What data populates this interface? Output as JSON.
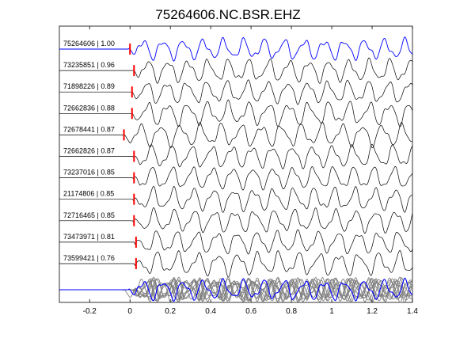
{
  "chart_data": {
    "type": "line",
    "title": "75264606.NC.BSR.EHZ",
    "xlabel": "",
    "ylabel": "",
    "xlim": [
      -0.35,
      1.4
    ],
    "xticks": [
      -0.2,
      0,
      0.2,
      0.4,
      0.6,
      0.8,
      1,
      1.2,
      1.4
    ],
    "xtick_labels": [
      "-0.2",
      "0",
      "0.2",
      "0.4",
      "0.6",
      "0.8",
      "1",
      "1.2",
      "1.4"
    ],
    "grid": false,
    "legend": "none",
    "pick_time": 0,
    "trace_window": [
      -0.35,
      1.4
    ],
    "colors": {
      "reference": "#0000ff",
      "trace": "#000000",
      "pick": "#ff0000",
      "stack": "#808080"
    },
    "series": [
      {
        "label": "75264606 | 1.00",
        "event_id": "75264606",
        "correlation": 1.0,
        "pick_offset": 0.0,
        "reference": true
      },
      {
        "label": "73235851 | 0.96",
        "event_id": "73235851",
        "correlation": 0.96,
        "pick_offset": 0.02
      },
      {
        "label": "71898226 | 0.89",
        "event_id": "71898226",
        "correlation": 0.89,
        "pick_offset": 0.01
      },
      {
        "label": "72662836 | 0.88",
        "event_id": "72662836",
        "correlation": 0.88,
        "pick_offset": 0.01
      },
      {
        "label": "72678441 | 0.87",
        "event_id": "72678441",
        "correlation": 0.87,
        "pick_offset": -0.03
      },
      {
        "label": "72662826 | 0.87",
        "event_id": "72662826",
        "correlation": 0.87,
        "pick_offset": 0.02
      },
      {
        "label": "73237016 | 0.85",
        "event_id": "73237016",
        "correlation": 0.85,
        "pick_offset": 0.02
      },
      {
        "label": "21174806 | 0.85",
        "event_id": "21174806",
        "correlation": 0.85,
        "pick_offset": 0.02
      },
      {
        "label": "72716465 | 0.85",
        "event_id": "72716465",
        "correlation": 0.85,
        "pick_offset": 0.02
      },
      {
        "label": "73473971 | 0.81",
        "event_id": "73473971",
        "correlation": 0.81,
        "pick_offset": 0.03
      },
      {
        "label": "73599421 | 0.76",
        "event_id": "73599421",
        "correlation": 0.76,
        "pick_offset": 0.03
      }
    ],
    "overlay": {
      "description_shown": false
    }
  }
}
